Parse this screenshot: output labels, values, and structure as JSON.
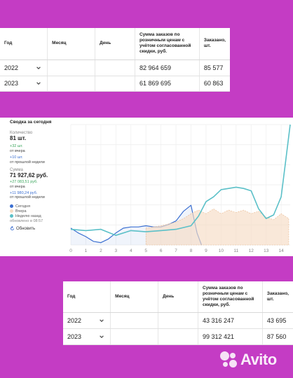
{
  "table_top": {
    "headers": [
      "Год",
      "Месяц",
      "День",
      "Сумма заказов по розничным ценам с учётом согласованной скидки, руб.",
      "Заказано, шт."
    ],
    "rows": [
      {
        "year": "2022",
        "sum": "82 964 659",
        "qty": "85 577"
      },
      {
        "year": "2023",
        "sum": "61 869 695",
        "qty": "60 863"
      }
    ]
  },
  "widget": {
    "title": "Сводка за сегодня",
    "qty_label": "Количество",
    "qty_value": "81 шт.",
    "qty_delta_day": "+32 шт.",
    "qty_delta_day_note": "от вчера",
    "qty_delta_week": "+10 шт.",
    "qty_delta_week_note": "от прошлой недели",
    "sum_label": "Сумма",
    "sum_value": "71 927,62 руб.",
    "sum_delta_day": "+27 083,51 руб.",
    "sum_delta_day_note": "от вчера",
    "sum_delta_week": "+11 980,24 руб.",
    "sum_delta_week_note": "от прошлой недели",
    "legend": [
      {
        "label": "Сегодня",
        "color": "#3b6fd1"
      },
      {
        "label": "Вчера",
        "color": "#f6dcc4"
      },
      {
        "label": "Неделю назад",
        "color": "#5bc0c8"
      }
    ],
    "updated": "обновлено в 08:57",
    "refresh_label": "Обновить"
  },
  "chart_data": {
    "type": "line",
    "x": [
      0,
      1,
      2,
      3,
      4,
      5,
      6,
      7,
      8,
      9,
      10,
      11,
      12,
      13,
      14
    ],
    "x_ticks": [
      "0",
      "1",
      "2",
      "3",
      "4",
      "5",
      "6",
      "7",
      "8",
      "9",
      "10",
      "11",
      "12",
      "13",
      "14"
    ],
    "grid": true,
    "series": [
      {
        "key": "today",
        "color": "#3b6fd1",
        "style": "line",
        "points": [
          [
            0,
            14
          ],
          [
            0.5,
            10
          ],
          [
            1,
            7
          ],
          [
            1.5,
            3
          ],
          [
            2,
            2
          ],
          [
            2.5,
            5
          ],
          [
            3,
            10
          ],
          [
            3.5,
            14
          ],
          [
            4,
            15
          ],
          [
            4.5,
            15
          ],
          [
            5,
            16
          ],
          [
            5.5,
            15
          ],
          [
            6,
            15
          ],
          [
            6.5,
            17
          ],
          [
            7,
            20
          ],
          [
            7.5,
            28
          ],
          [
            8,
            33
          ],
          [
            8.4,
            10
          ],
          [
            8.7,
            0
          ]
        ]
      },
      {
        "key": "yesterday",
        "color": "#f6dcc4",
        "style": "area",
        "points": [
          [
            5,
            14
          ],
          [
            6,
            16
          ],
          [
            7,
            19
          ],
          [
            7.5,
            22
          ],
          [
            8,
            26
          ],
          [
            8.5,
            29
          ],
          [
            9,
            26
          ],
          [
            9.5,
            30
          ],
          [
            10,
            26
          ],
          [
            10.5,
            29
          ],
          [
            11,
            27
          ],
          [
            11.5,
            29
          ],
          [
            12,
            26
          ],
          [
            12.5,
            28
          ],
          [
            13,
            23
          ],
          [
            13.5,
            21
          ],
          [
            14,
            26
          ],
          [
            14.5,
            22
          ]
        ]
      },
      {
        "key": "week_ago",
        "color": "#5bc0c8",
        "style": "line",
        "points": [
          [
            0,
            13
          ],
          [
            1,
            12
          ],
          [
            2,
            13
          ],
          [
            3,
            8
          ],
          [
            4,
            12
          ],
          [
            5,
            11
          ],
          [
            6,
            12
          ],
          [
            7,
            13
          ],
          [
            8,
            16
          ],
          [
            8.5,
            24
          ],
          [
            9,
            36
          ],
          [
            9.5,
            40
          ],
          [
            10,
            46
          ],
          [
            10.5,
            47
          ],
          [
            11,
            48
          ],
          [
            11.5,
            47
          ],
          [
            12,
            45
          ],
          [
            12.5,
            30
          ],
          [
            13,
            22
          ],
          [
            13.5,
            25
          ],
          [
            14,
            40
          ],
          [
            14.3,
            70
          ],
          [
            14.6,
            100
          ]
        ]
      }
    ]
  },
  "table_bottom": {
    "headers": [
      "Год",
      "Месяц",
      "День",
      "Сумма заказов по розничным ценам с учётом согласованной скидки, руб.",
      "Заказано, шт."
    ],
    "rows": [
      {
        "year": "2022",
        "sum": "43 316 247",
        "qty": "43 695"
      },
      {
        "year": "2023",
        "sum": "99 312 421",
        "qty": "87 560"
      }
    ]
  },
  "watermark": {
    "text": "Avito"
  }
}
